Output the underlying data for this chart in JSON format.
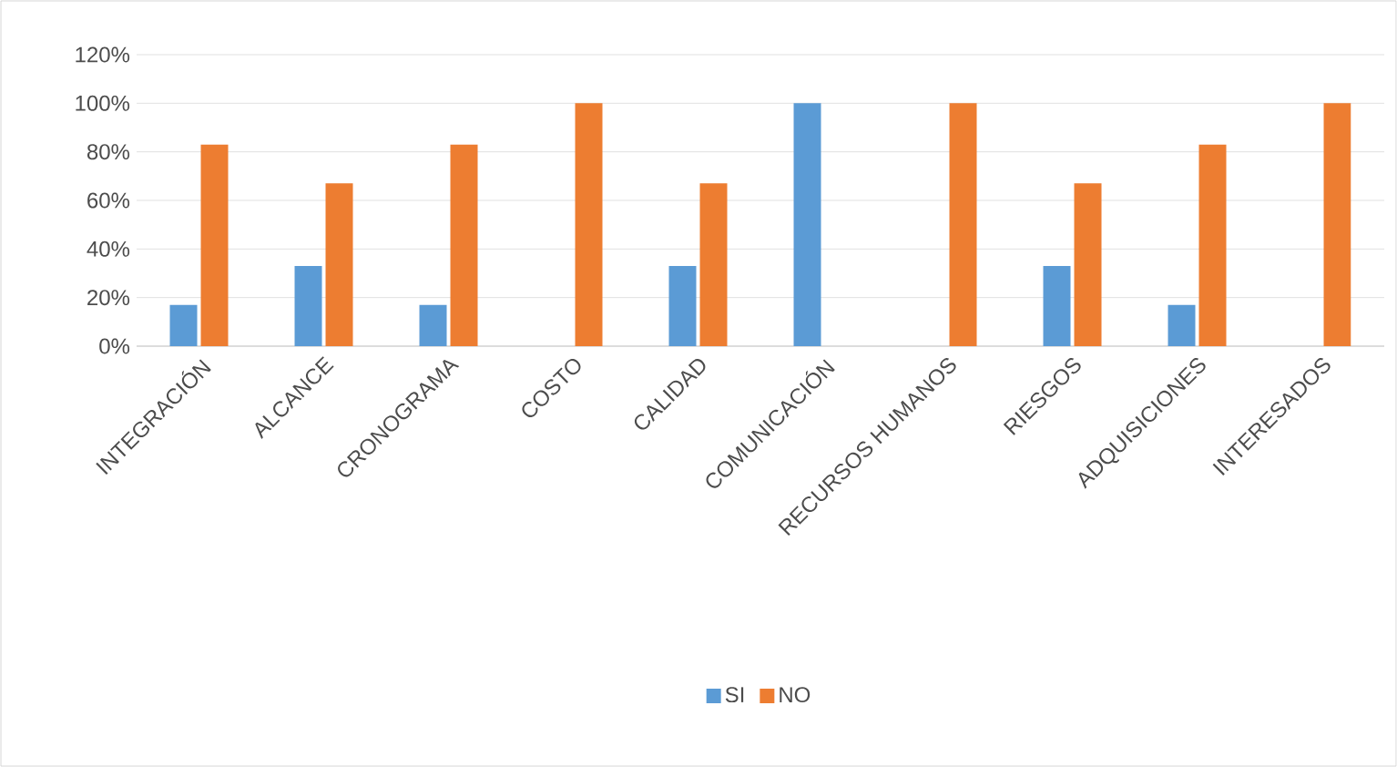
{
  "chart_data": {
    "type": "bar",
    "categories": [
      "INTEGRACIÓN",
      "ALCANCE",
      "CRONOGRAMA",
      "COSTO",
      "CALIDAD",
      "COMUNICACIÓN",
      "RECURSOS HUMANOS",
      "RIESGOS",
      "ADQUISICIONES",
      "INTERESADOS"
    ],
    "series": [
      {
        "name": "SI",
        "color": "#5b9bd5",
        "values": [
          17,
          33,
          17,
          0,
          33,
          100,
          0,
          33,
          17,
          0
        ]
      },
      {
        "name": "NO",
        "color": "#ed7d31",
        "values": [
          83,
          67,
          83,
          100,
          67,
          0,
          100,
          67,
          83,
          100
        ]
      }
    ],
    "ylim": [
      0,
      120
    ],
    "yticks": [
      {
        "value": 0,
        "label": "0%"
      },
      {
        "value": 20,
        "label": "20%"
      },
      {
        "value": 40,
        "label": "40%"
      },
      {
        "value": 60,
        "label": "60%"
      },
      {
        "value": 80,
        "label": "80%"
      },
      {
        "value": 100,
        "label": "100%"
      },
      {
        "value": 120,
        "label": "120%"
      }
    ],
    "grid": "y",
    "legend": "bottom"
  }
}
